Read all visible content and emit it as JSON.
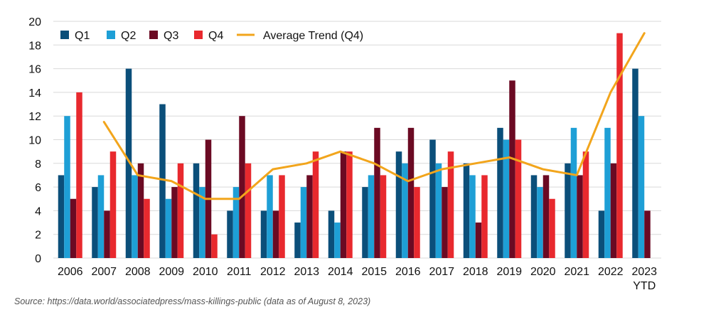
{
  "chart_data": {
    "type": "bar",
    "categories": [
      "2006",
      "2007",
      "2008",
      "2009",
      "2010",
      "2011",
      "2012",
      "2013",
      "2014",
      "2015",
      "2016",
      "2017",
      "2018",
      "2019",
      "2020",
      "2021",
      "2022",
      "2023\nYTD"
    ],
    "series": [
      {
        "name": "Q1",
        "color": "#0b4f7a",
        "values": [
          7,
          6,
          16,
          13,
          8,
          4,
          4,
          3,
          4,
          6,
          9,
          10,
          8,
          11,
          7,
          8,
          4,
          16
        ]
      },
      {
        "name": "Q2",
        "color": "#1e9fd6",
        "values": [
          12,
          7,
          7,
          5,
          6,
          6,
          7,
          6,
          3,
          7,
          8,
          8,
          7,
          10,
          6,
          11,
          11,
          12
        ]
      },
      {
        "name": "Q3",
        "color": "#6b0a23",
        "values": [
          5,
          4,
          8,
          6,
          10,
          12,
          4,
          7,
          9,
          11,
          11,
          6,
          3,
          15,
          7,
          7,
          8,
          4
        ]
      },
      {
        "name": "Q4",
        "color": "#e8292e",
        "values": [
          14,
          9,
          5,
          8,
          2,
          8,
          7,
          9,
          9,
          7,
          6,
          9,
          7,
          10,
          5,
          9,
          19,
          null
        ]
      }
    ],
    "trend": {
      "name": "Average Trend (Q4)",
      "color": "#f2a51c",
      "values": [
        null,
        11.5,
        7,
        6.5,
        5,
        5,
        7.5,
        8,
        9,
        8,
        6.5,
        7.5,
        8,
        8.5,
        7.5,
        7,
        14,
        19
      ]
    },
    "ylim": [
      0,
      20
    ],
    "yticks": [
      0,
      2,
      4,
      6,
      8,
      10,
      12,
      14,
      16,
      18,
      20
    ],
    "grid": true,
    "legend_position": "top-left",
    "source": "Source: https://data.world/associatedpress/mass-killings-public (data as of August 8, 2023)"
  }
}
